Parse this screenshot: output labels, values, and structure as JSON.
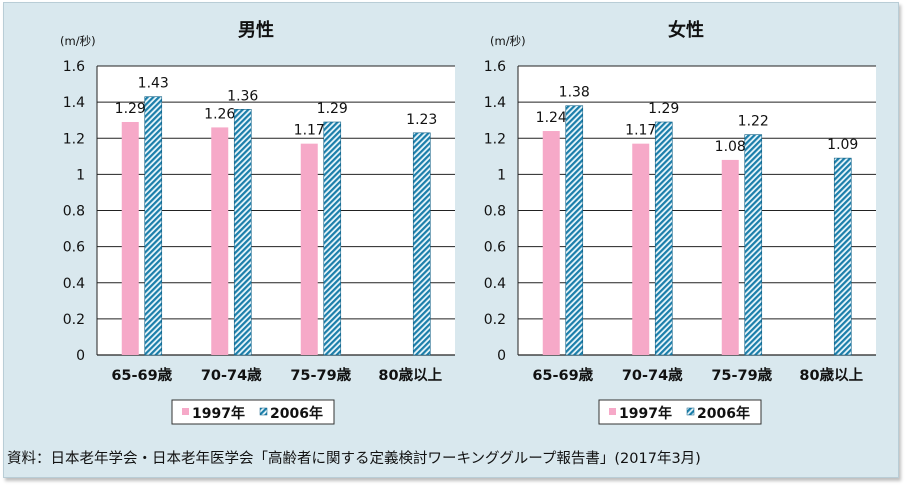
{
  "source_note": "資料：日本老年学会・日本老年医学会「高齢者に関する定義検討ワーキンググループ報告書」(2017年3月)",
  "colors": {
    "panel_bg": "#d9e8ee",
    "plot_bg": "#ffffff",
    "series_1997": "#f6a9c8",
    "series_2006": "#1b7eaa",
    "series_2006_light": "#e8f6fb"
  },
  "chart_data": [
    {
      "type": "bar",
      "title": "男性",
      "unit_label": "(m/秒)",
      "categories": [
        "65-69歳",
        "70-74歳",
        "75-79歳",
        "80歳以上"
      ],
      "yticks": [
        "0",
        "0.2",
        "0.4",
        "0.6",
        "0.8",
        "1",
        "1.2",
        "1.4",
        "1.6"
      ],
      "ylim": [
        0,
        1.6
      ],
      "grid": true,
      "legend_position": "bottom",
      "series": [
        {
          "name": "1997年",
          "values": [
            1.29,
            1.26,
            1.17,
            null
          ],
          "labels": [
            "1.29",
            "1.26",
            "1.17",
            ""
          ]
        },
        {
          "name": "2006年",
          "values": [
            1.43,
            1.36,
            1.29,
            1.23
          ],
          "labels": [
            "1.43",
            "1.36",
            "1.29",
            "1.23"
          ]
        }
      ]
    },
    {
      "type": "bar",
      "title": "女性",
      "unit_label": "(m/秒)",
      "categories": [
        "65-69歳",
        "70-74歳",
        "75-79歳",
        "80歳以上"
      ],
      "yticks": [
        "0",
        "0.2",
        "0.4",
        "0.6",
        "0.8",
        "1",
        "1.2",
        "1.4",
        "1.6"
      ],
      "ylim": [
        0,
        1.6
      ],
      "grid": true,
      "legend_position": "bottom",
      "series": [
        {
          "name": "1997年",
          "values": [
            1.24,
            1.17,
            1.08,
            null
          ],
          "labels": [
            "1.24",
            "1.17",
            "1.08",
            ""
          ]
        },
        {
          "name": "2006年",
          "values": [
            1.38,
            1.29,
            1.22,
            1.09
          ],
          "labels": [
            "1.38",
            "1.29",
            "1.22",
            "1.09"
          ]
        }
      ]
    }
  ]
}
